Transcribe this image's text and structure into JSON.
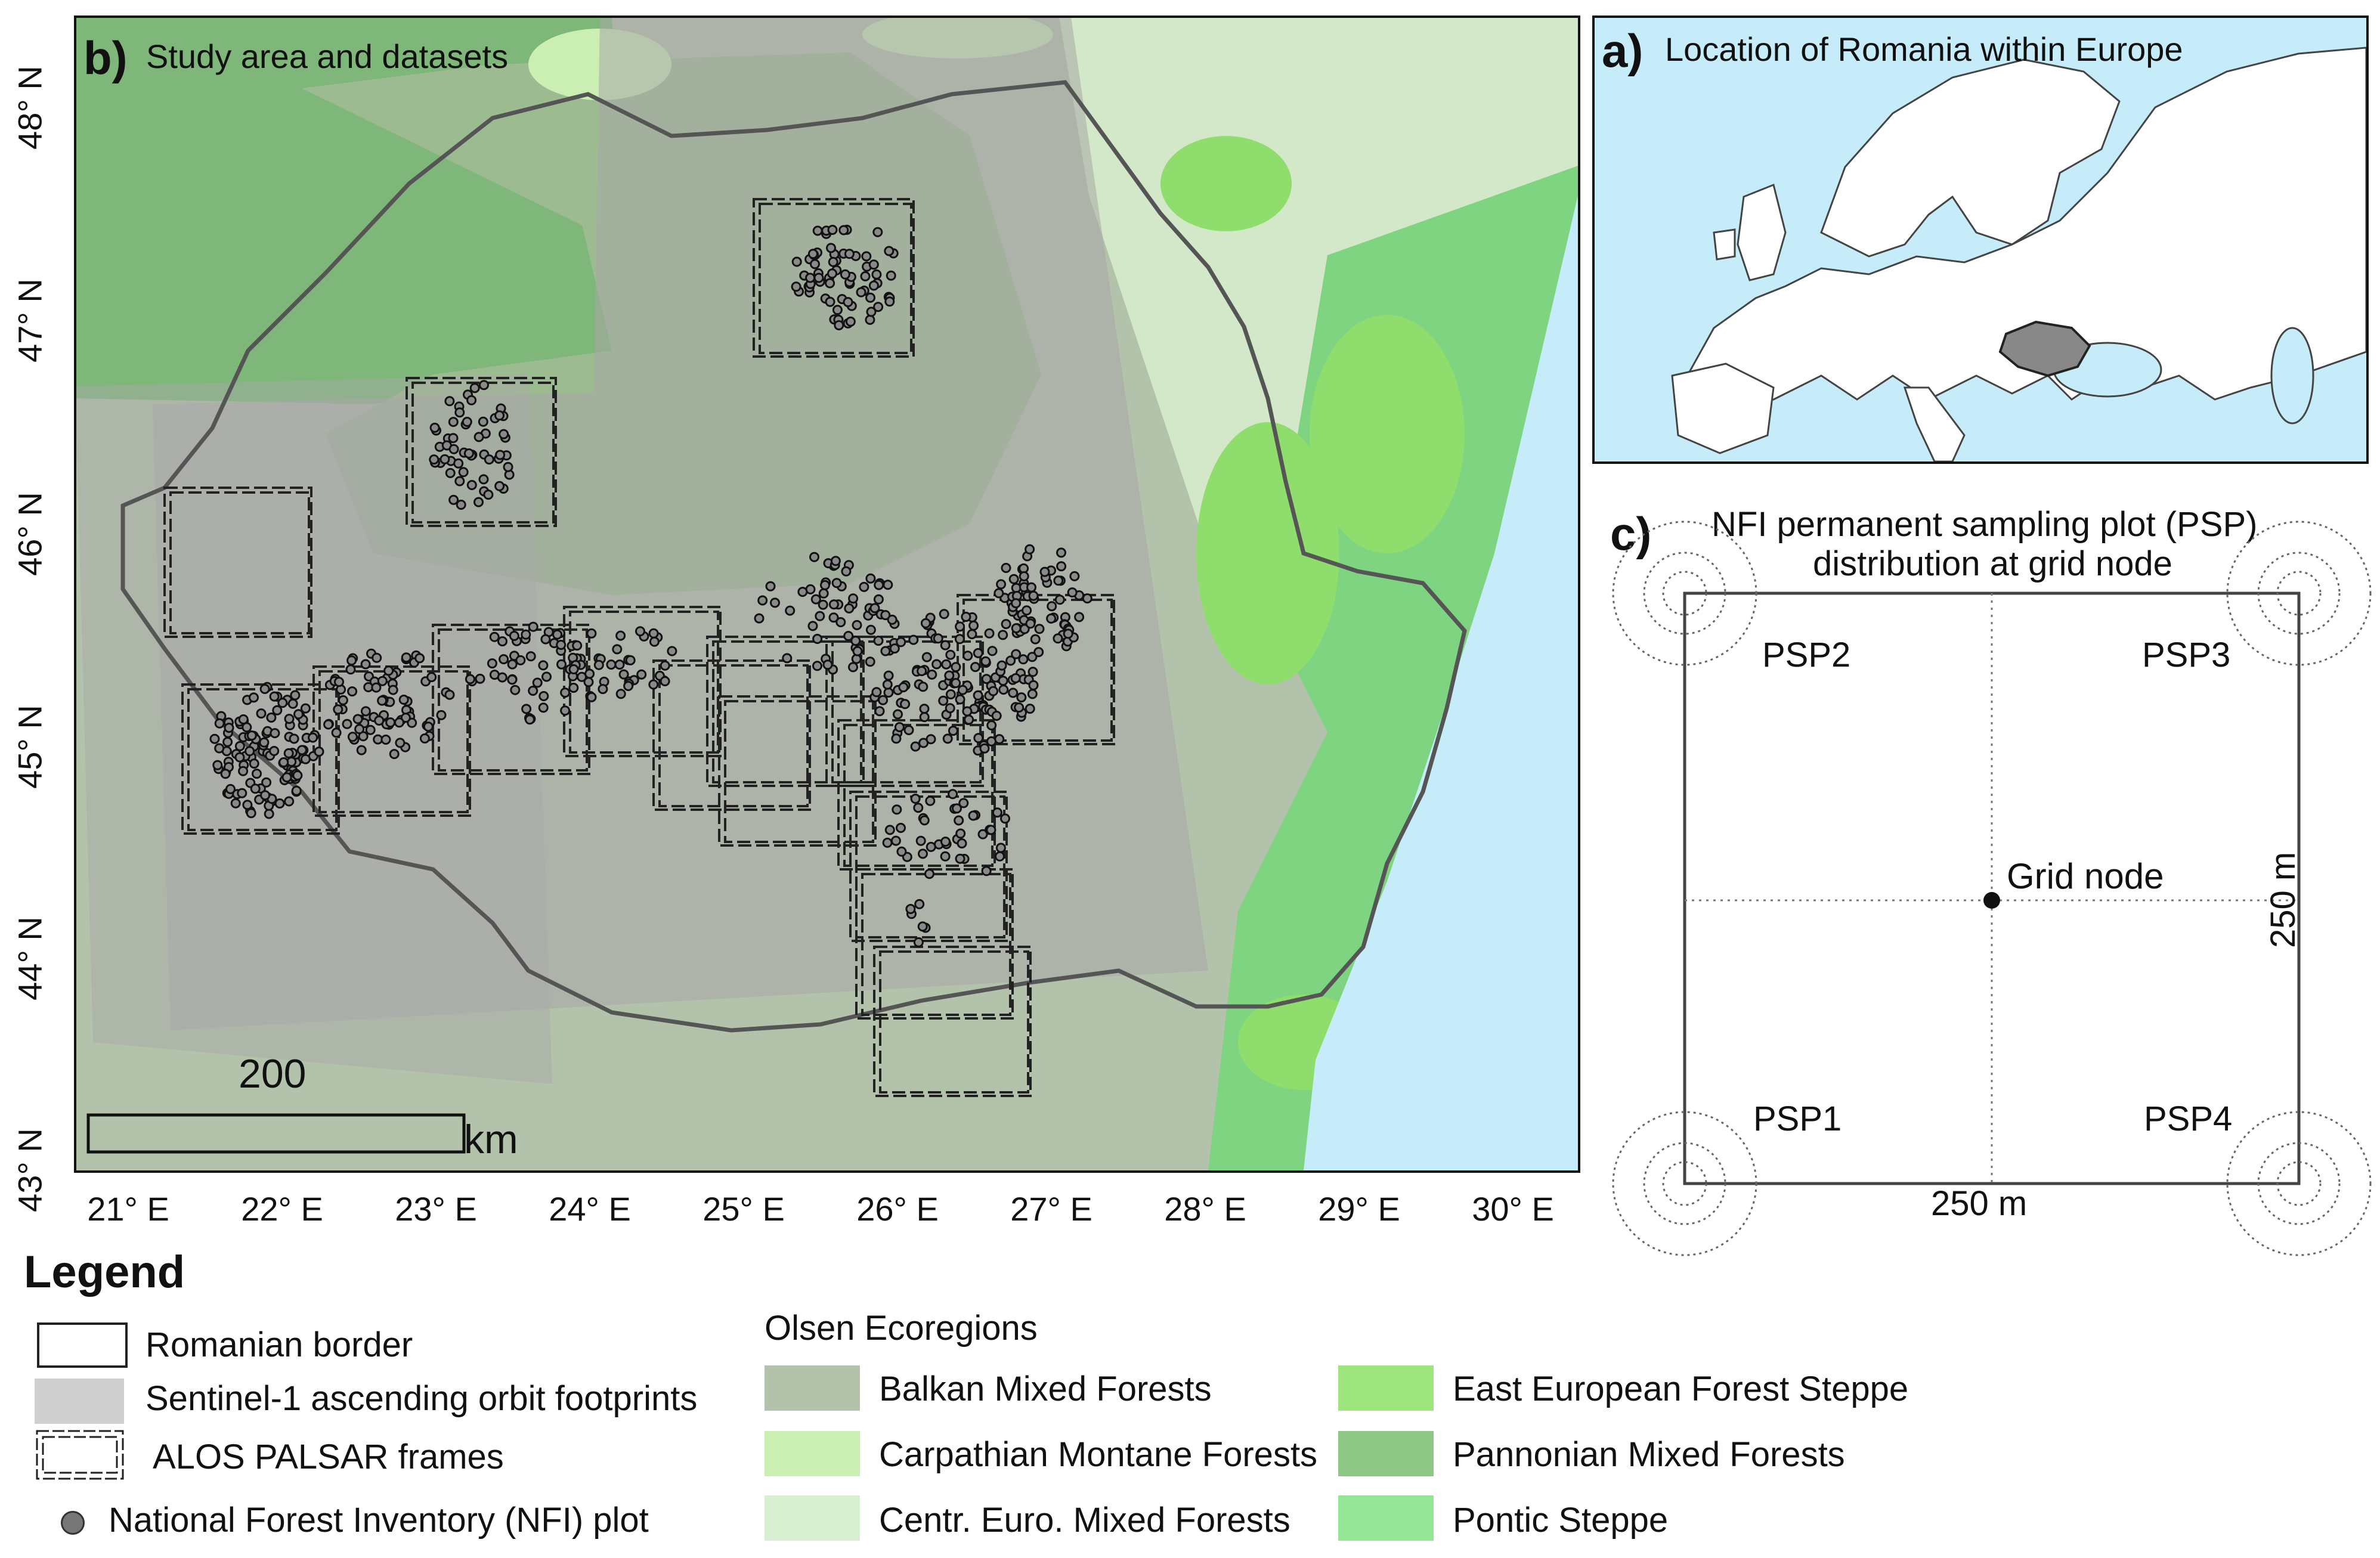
{
  "panel_b": {
    "letter": "b)",
    "title": "Study area and datasets",
    "x_ticks": [
      "21° E",
      "22° E",
      "23° E",
      "24° E",
      "25° E",
      "26° E",
      "27° E",
      "28° E",
      "29° E",
      "30° E"
    ],
    "y_ticks": [
      "48° N",
      "47° N",
      "46° N",
      "45° N",
      "44° N",
      "43° N"
    ],
    "scale_value": "200",
    "scale_unit": "km"
  },
  "panel_a": {
    "letter": "a)",
    "title": "Location of Romania within Europe"
  },
  "panel_c": {
    "letter": "c)",
    "title_line1": "NFI permanent sampling plot (PSP)",
    "title_line2": "distribution at grid node",
    "psp1": "PSP1",
    "psp2": "PSP2",
    "psp3": "PSP3",
    "psp4": "PSP4",
    "grid_node": "Grid node",
    "width_label": "250 m",
    "height_label": "250 m"
  },
  "legend": {
    "title": "Legend",
    "romanian_border": "Romanian border",
    "sentinel": "Sentinel-1 ascending orbit footprints",
    "alos": "ALOS PALSAR frames",
    "nfi": "National Forest Inventory (NFI) plot",
    "ecoregions_title": "Olsen Ecoregions",
    "ecoregions": [
      {
        "label": "Balkan Mixed Forests",
        "color": "#b3c2aa"
      },
      {
        "label": "Carpathian Montane Forests",
        "color": "#cbeeb3"
      },
      {
        "label": "Centr. Euro. Mixed Forests",
        "color": "#d9efd2"
      },
      {
        "label": "East European Forest Steppe",
        "color": "#9fe57d"
      },
      {
        "label": "Pannonian Mixed Forests",
        "color": "#8fc886"
      },
      {
        "label": "Pontic Steppe",
        "color": "#95e696"
      }
    ]
  },
  "colors": {
    "sea": "#c5ecf8",
    "sentinel": "#a8a8a8",
    "border": "#555555"
  }
}
